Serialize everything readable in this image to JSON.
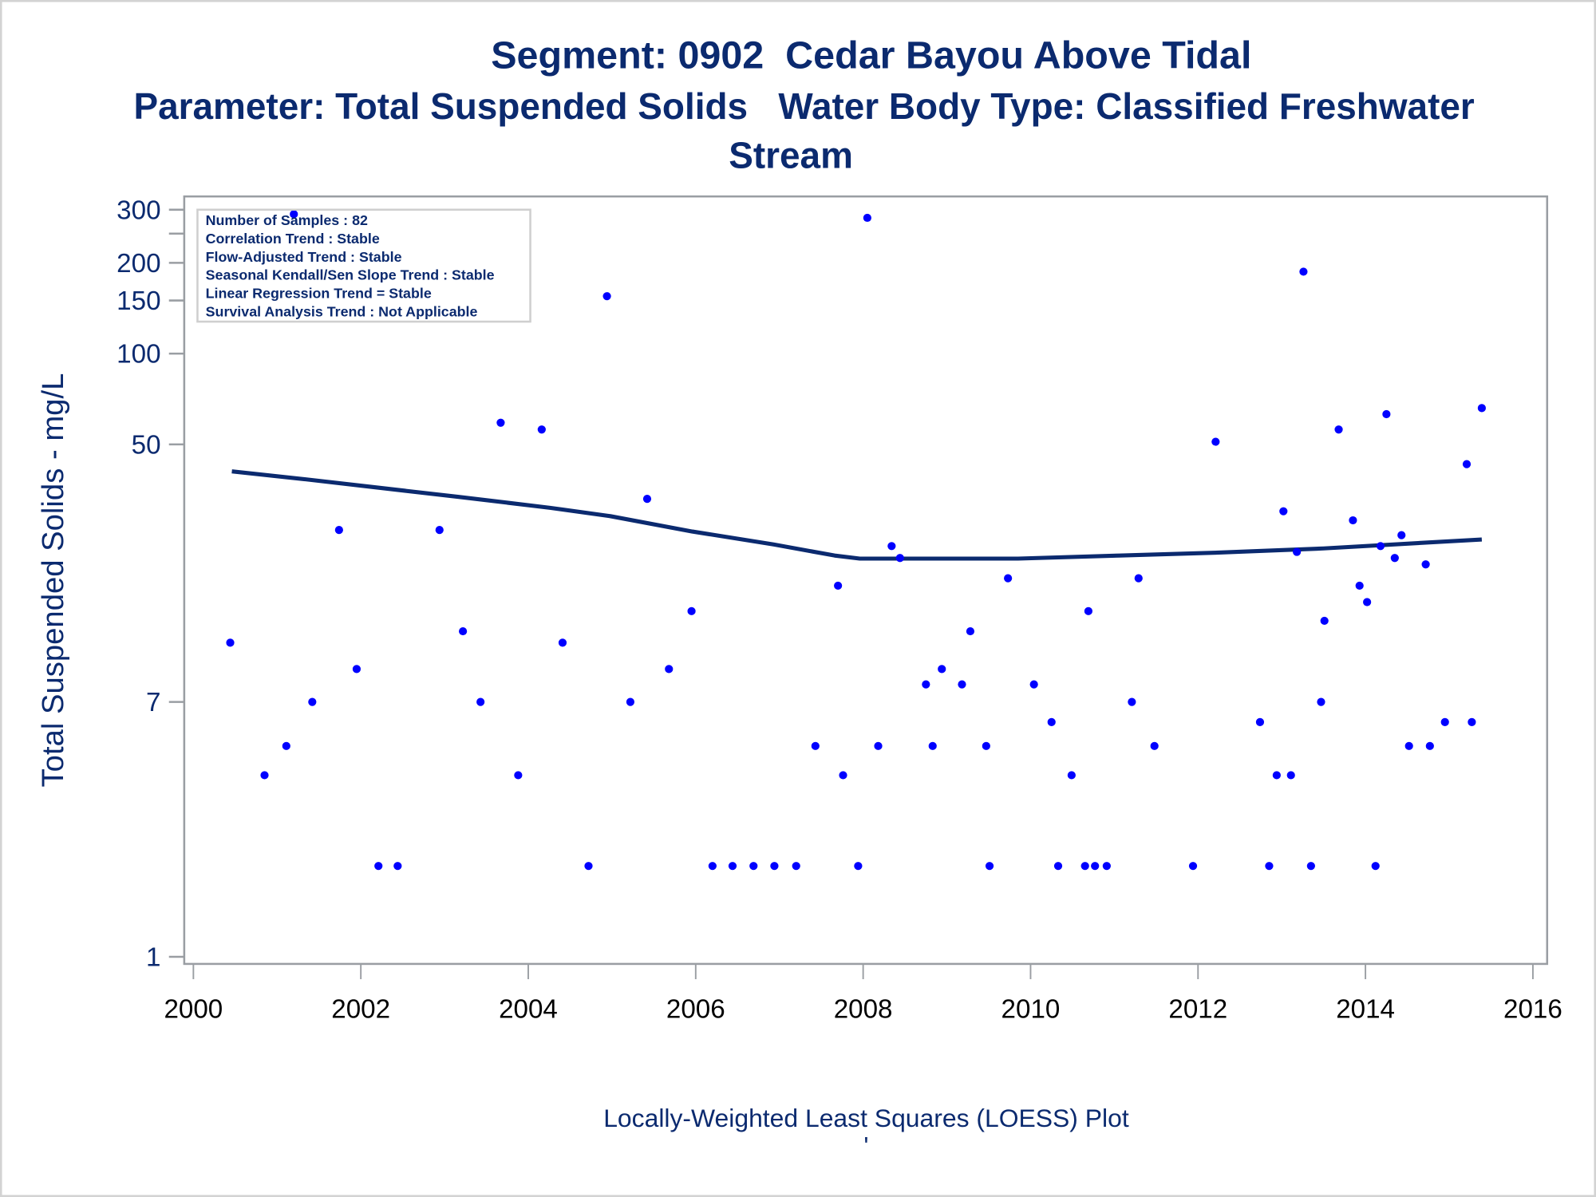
{
  "chart_data": {
    "type": "scatter",
    "title": "Segment: 0902  Cedar Bayou Above Tidal",
    "subtitle_line1": "Parameter: Total Suspended Solids   Water Body Type: Classified Freshwater",
    "subtitle_line2": "Stream",
    "ylabel": "Total Suspended Solids - mg/L",
    "xlabel": "",
    "footnote": "Locally-Weighted Least Squares (LOESS) Plot",
    "footnote_mark": "'",
    "yscale": "log",
    "ylim": [
      1,
      330
    ],
    "xlim": [
      2000,
      2016
    ],
    "x_ticks": [
      "2000",
      "2002",
      "2004",
      "2006",
      "2008",
      "2010",
      "2012",
      "2014",
      "2016"
    ],
    "y_ticks": [
      {
        "v": 1,
        "label": "1"
      },
      {
        "v": 7,
        "label": "7"
      },
      {
        "v": 50,
        "label": "50"
      },
      {
        "v": 100,
        "label": "100"
      },
      {
        "v": 150,
        "label": "150"
      },
      {
        "v": 200,
        "label": "200"
      },
      {
        "v": 250,
        "label": ""
      },
      {
        "v": 300,
        "label": "300"
      }
    ],
    "inset": [
      "Number of Samples : 82",
      "Correlation Trend : Stable",
      "Flow-Adjusted Trend : Stable",
      "Seasonal Kendall/Sen Slope Trend : Stable",
      "Linear Regression Trend = Stable",
      "Survival Analysis Trend : Not Applicable"
    ],
    "colors": {
      "points": "#0000ff",
      "loess": "#0b2a6f",
      "text": "#0b2a6f",
      "axis": "#9a9ea3"
    },
    "series": [
      {
        "name": "samples",
        "type": "scatter",
        "x": [
          2000.44,
          2000.85,
          2001.11,
          2001.2,
          2001.42,
          2001.74,
          2001.95,
          2002.21,
          2002.44,
          2002.94,
          2003.22,
          2003.43,
          2003.67,
          2003.88,
          2004.16,
          2004.41,
          2004.72,
          2004.94,
          2005.22,
          2005.42,
          2005.68,
          2005.95,
          2006.2,
          2006.44,
          2006.69,
          2006.94,
          2007.2,
          2007.43,
          2007.7,
          2007.76,
          2007.94,
          2008.05,
          2008.18,
          2008.34,
          2008.44,
          2008.75,
          2008.83,
          2008.94,
          2009.18,
          2009.28,
          2009.47,
          2009.51,
          2009.73,
          2010.04,
          2010.25,
          2010.33,
          2010.49,
          2010.65,
          2010.69,
          2010.77,
          2010.91,
          2011.21,
          2011.29,
          2011.48,
          2011.94,
          2012.21,
          2012.74,
          2012.85,
          2012.94,
          2013.02,
          2013.11,
          2013.18,
          2013.26,
          2013.35,
          2013.47,
          2013.51,
          2013.68,
          2013.85,
          2013.93,
          2014.02,
          2014.12,
          2014.18,
          2014.25,
          2014.35,
          2014.43,
          2014.52,
          2014.72,
          2014.77,
          2014.95,
          2015.21,
          2015.27,
          2015.39
        ],
        "y": [
          11,
          4,
          5,
          290,
          7,
          26,
          9,
          2,
          2,
          26,
          12,
          7,
          59,
          4,
          56,
          11,
          2,
          155,
          7,
          33,
          9,
          14,
          2,
          2,
          2,
          2,
          2,
          5,
          17,
          4,
          2,
          282,
          5,
          23,
          21,
          8,
          5,
          9,
          8,
          12,
          5,
          2,
          18,
          8,
          6,
          2,
          4,
          2,
          14,
          2,
          2,
          7,
          18,
          5,
          2,
          51,
          6,
          2,
          4,
          30,
          4,
          22,
          187,
          2,
          7,
          13,
          56,
          28,
          17,
          15,
          2,
          23,
          63,
          21,
          25,
          5,
          20,
          5,
          6,
          43,
          6,
          66
        ]
      },
      {
        "name": "LOESS",
        "type": "line",
        "x": [
          2000.46,
          2001.34,
          2002.07,
          2003.16,
          2004.26,
          2004.98,
          2005.96,
          2006.93,
          2007.66,
          2007.96,
          2008.63,
          2009.85,
          2011.06,
          2012.28,
          2013.5,
          2015.39
        ],
        "y": [
          40.7,
          38.3,
          36.3,
          33.5,
          30.8,
          28.9,
          25.7,
          23.3,
          21.4,
          20.9,
          20.9,
          20.9,
          21.4,
          21.9,
          22.6,
          24.2
        ]
      }
    ]
  }
}
